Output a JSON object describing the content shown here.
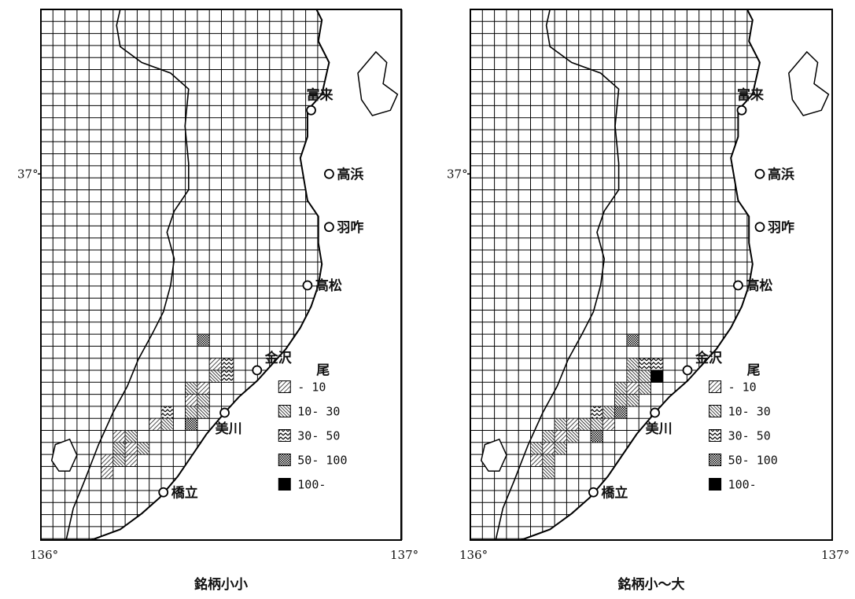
{
  "maps": [
    {
      "caption": "銘柄小小",
      "unit": "尾",
      "axis": {
        "lat_label": "37°",
        "lon_left": "136°",
        "lon_right": "137°"
      },
      "cities": [
        {
          "name": "富来"
        },
        {
          "name": "高浜"
        },
        {
          "name": "羽咋"
        },
        {
          "name": "高松"
        },
        {
          "name": "金沢"
        },
        {
          "name": "美川"
        },
        {
          "name": "橋立"
        }
      ],
      "legend": [
        {
          "pattern": "p1",
          "label": "- 10"
        },
        {
          "pattern": "p2",
          "label": "10- 30"
        },
        {
          "pattern": "p3",
          "label": "30- 50"
        },
        {
          "pattern": "p4",
          "label": "50- 100"
        },
        {
          "pattern": "p5",
          "label": "100-"
        }
      ],
      "cells": [
        {
          "col": 13,
          "row": 27,
          "cls": 4
        },
        {
          "col": 14,
          "row": 29,
          "cls": 1
        },
        {
          "col": 15,
          "row": 29,
          "cls": 3
        },
        {
          "col": 14,
          "row": 30,
          "cls": 2
        },
        {
          "col": 15,
          "row": 30,
          "cls": 3
        },
        {
          "col": 12,
          "row": 31,
          "cls": 2
        },
        {
          "col": 13,
          "row": 31,
          "cls": 1
        },
        {
          "col": 12,
          "row": 32,
          "cls": 1
        },
        {
          "col": 13,
          "row": 32,
          "cls": 2
        },
        {
          "col": 10,
          "row": 33,
          "cls": 3
        },
        {
          "col": 12,
          "row": 33,
          "cls": 2
        },
        {
          "col": 13,
          "row": 33,
          "cls": 2
        },
        {
          "col": 9,
          "row": 34,
          "cls": 1
        },
        {
          "col": 10,
          "row": 34,
          "cls": 2
        },
        {
          "col": 12,
          "row": 34,
          "cls": 4
        },
        {
          "col": 6,
          "row": 35,
          "cls": 1
        },
        {
          "col": 7,
          "row": 35,
          "cls": 2
        },
        {
          "col": 6,
          "row": 36,
          "cls": 2
        },
        {
          "col": 7,
          "row": 36,
          "cls": 1
        },
        {
          "col": 8,
          "row": 36,
          "cls": 2
        },
        {
          "col": 5,
          "row": 37,
          "cls": 1
        },
        {
          "col": 6,
          "row": 37,
          "cls": 2
        },
        {
          "col": 7,
          "row": 37,
          "cls": 1
        },
        {
          "col": 5,
          "row": 38,
          "cls": 1
        }
      ]
    },
    {
      "caption": "銘柄小～大",
      "unit": "尾",
      "axis": {
        "lat_label": "37°",
        "lon_left": "136°",
        "lon_right": "137°"
      },
      "cities": [
        {
          "name": "富来"
        },
        {
          "name": "高浜"
        },
        {
          "name": "羽咋"
        },
        {
          "name": "高松"
        },
        {
          "name": "金沢"
        },
        {
          "name": "美川"
        },
        {
          "name": "橋立"
        }
      ],
      "legend": [
        {
          "pattern": "p1",
          "label": "- 10"
        },
        {
          "pattern": "p2",
          "label": "10- 30"
        },
        {
          "pattern": "p3",
          "label": "30- 50"
        },
        {
          "pattern": "p4",
          "label": "50- 100"
        },
        {
          "pattern": "p5",
          "label": "100-"
        }
      ],
      "cells": [
        {
          "col": 13,
          "row": 27,
          "cls": 4
        },
        {
          "col": 13,
          "row": 29,
          "cls": 2
        },
        {
          "col": 14,
          "row": 29,
          "cls": 3
        },
        {
          "col": 15,
          "row": 29,
          "cls": 3
        },
        {
          "col": 13,
          "row": 30,
          "cls": 2
        },
        {
          "col": 14,
          "row": 30,
          "cls": 2
        },
        {
          "col": 15,
          "row": 30,
          "cls": 5
        },
        {
          "col": 12,
          "row": 31,
          "cls": 2
        },
        {
          "col": 13,
          "row": 31,
          "cls": 1
        },
        {
          "col": 14,
          "row": 31,
          "cls": 2
        },
        {
          "col": 12,
          "row": 32,
          "cls": 2
        },
        {
          "col": 13,
          "row": 32,
          "cls": 2
        },
        {
          "col": 10,
          "row": 33,
          "cls": 3
        },
        {
          "col": 11,
          "row": 33,
          "cls": 2
        },
        {
          "col": 12,
          "row": 33,
          "cls": 4
        },
        {
          "col": 7,
          "row": 34,
          "cls": 2
        },
        {
          "col": 8,
          "row": 34,
          "cls": 1
        },
        {
          "col": 9,
          "row": 34,
          "cls": 2
        },
        {
          "col": 10,
          "row": 34,
          "cls": 2
        },
        {
          "col": 11,
          "row": 34,
          "cls": 1
        },
        {
          "col": 6,
          "row": 35,
          "cls": 2
        },
        {
          "col": 7,
          "row": 35,
          "cls": 1
        },
        {
          "col": 8,
          "row": 35,
          "cls": 2
        },
        {
          "col": 10,
          "row": 35,
          "cls": 4
        },
        {
          "col": 5,
          "row": 36,
          "cls": 2
        },
        {
          "col": 6,
          "row": 36,
          "cls": 1
        },
        {
          "col": 7,
          "row": 36,
          "cls": 2
        },
        {
          "col": 5,
          "row": 37,
          "cls": 1
        },
        {
          "col": 6,
          "row": 37,
          "cls": 2
        },
        {
          "col": 6,
          "row": 38,
          "cls": 2
        }
      ]
    }
  ]
}
